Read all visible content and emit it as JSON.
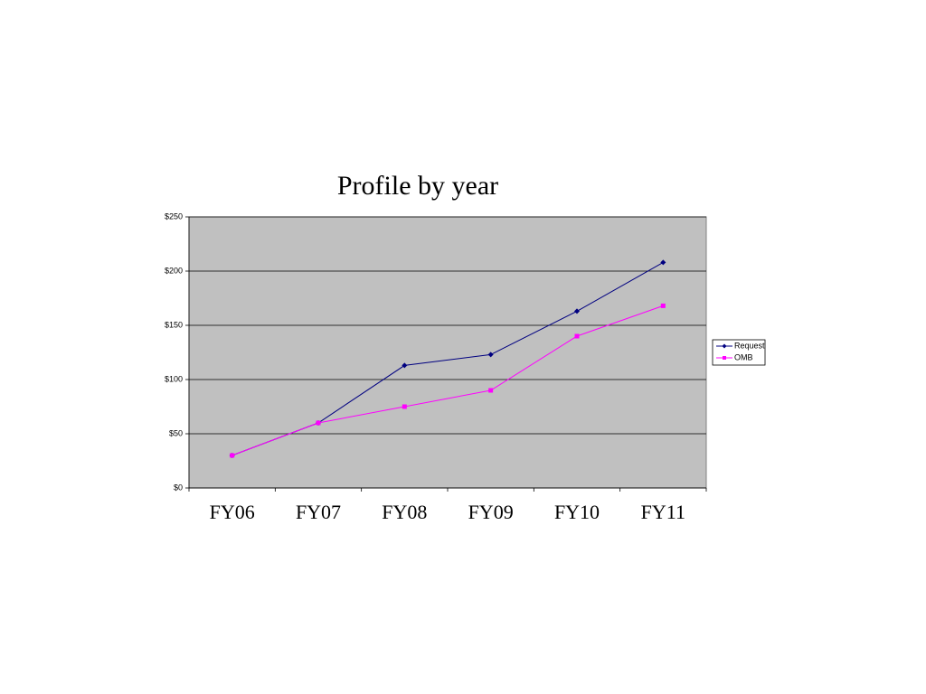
{
  "chart_data": {
    "type": "line",
    "title": "Profile by year",
    "categories": [
      "FY06",
      "FY07",
      "FY08",
      "FY09",
      "FY10",
      "FY11"
    ],
    "series": [
      {
        "name": "Request",
        "color": "#000080",
        "values": [
          30,
          60,
          113,
          123,
          163,
          208
        ]
      },
      {
        "name": "OMB",
        "color": "#ff00ff",
        "values": [
          30,
          60,
          75,
          90,
          140,
          168
        ]
      }
    ],
    "ylim": [
      0,
      250
    ],
    "yticks": [
      {
        "value": 0,
        "label": "$0"
      },
      {
        "value": 50,
        "label": "$50"
      },
      {
        "value": 100,
        "label": "$100"
      },
      {
        "value": 150,
        "label": "$150"
      },
      {
        "value": 200,
        "label": "$200"
      },
      {
        "value": 250,
        "label": "$250"
      }
    ],
    "grid": true,
    "legend": "right"
  }
}
